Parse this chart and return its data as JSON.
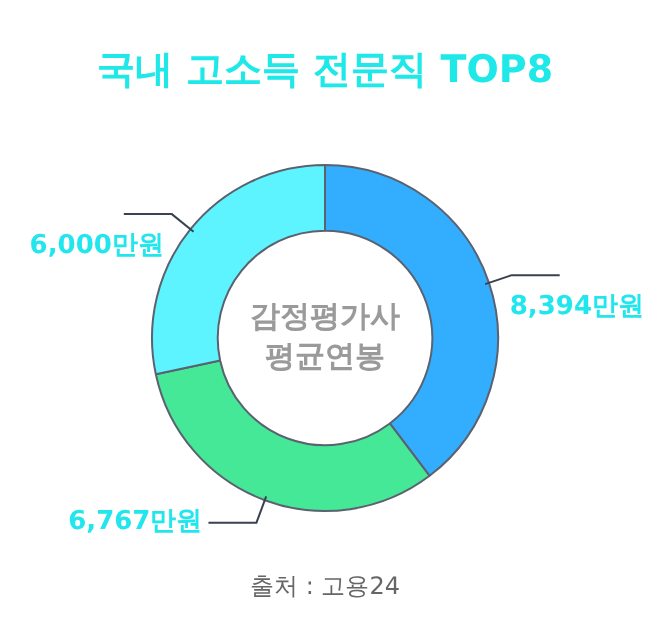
{
  "chart_data": {
    "type": "donut",
    "title": "국내 고소득 전문직 TOP8",
    "categories": [
      null,
      null,
      null
    ],
    "values": [
      8394,
      6767,
      6000
    ],
    "value_labels": [
      "8,394만원",
      "6,767만원",
      "6,000만원"
    ],
    "colors": [
      "#33aeff",
      "#45e896",
      "#5ef4ff"
    ],
    "legend": false,
    "annotations": [
      "감정평가사\n평균연봉",
      "출처 : 고용24"
    ]
  }
}
